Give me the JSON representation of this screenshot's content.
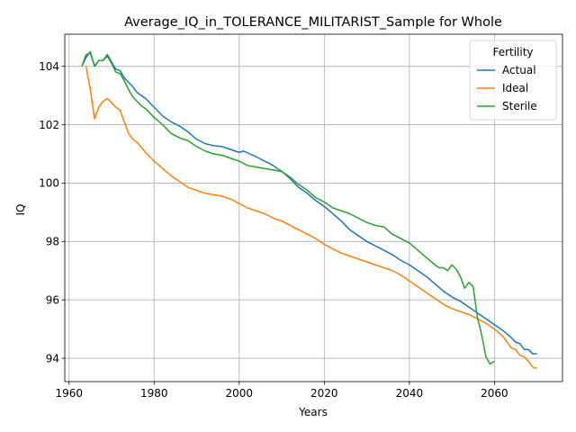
{
  "chart_data": {
    "type": "line",
    "title": "Average_IQ_in_TOLERANCE_MILITARIST_Sample for Whole",
    "xlabel": "Years",
    "ylabel": "IQ",
    "xlim": [
      1959,
      2076
    ],
    "ylim": [
      93.2,
      105.1
    ],
    "xticks": [
      1960,
      1980,
      2000,
      2020,
      2040,
      2060
    ],
    "yticks": [
      94,
      96,
      98,
      100,
      102,
      104
    ],
    "grid": true,
    "legend": {
      "title": "Fertility",
      "position": "top-right"
    },
    "series": [
      {
        "name": "Actual",
        "color": "#1f77b4",
        "points": [
          [
            1963,
            104.0
          ],
          [
            1964,
            104.3
          ],
          [
            1965,
            104.5
          ],
          [
            1966,
            104.0
          ],
          [
            1967,
            104.2
          ],
          [
            1968,
            104.2
          ],
          [
            1969,
            104.4
          ],
          [
            1970,
            104.15
          ],
          [
            1971,
            103.9
          ],
          [
            1972,
            103.85
          ],
          [
            1973,
            103.6
          ],
          [
            1974,
            103.45
          ],
          [
            1975,
            103.3
          ],
          [
            1976,
            103.1
          ],
          [
            1977,
            103.0
          ],
          [
            1978,
            102.9
          ],
          [
            1980,
            102.6
          ],
          [
            1982,
            102.3
          ],
          [
            1984,
            102.1
          ],
          [
            1986,
            101.95
          ],
          [
            1988,
            101.75
          ],
          [
            1990,
            101.5
          ],
          [
            1992,
            101.35
          ],
          [
            1994,
            101.28
          ],
          [
            1996,
            101.25
          ],
          [
            1998,
            101.15
          ],
          [
            2000,
            101.05
          ],
          [
            2001,
            101.1
          ],
          [
            2004,
            100.9
          ],
          [
            2006,
            100.75
          ],
          [
            2008,
            100.6
          ],
          [
            2010,
            100.4
          ],
          [
            2012,
            100.15
          ],
          [
            2014,
            99.85
          ],
          [
            2016,
            99.65
          ],
          [
            2018,
            99.4
          ],
          [
            2020,
            99.2
          ],
          [
            2022,
            98.95
          ],
          [
            2024,
            98.7
          ],
          [
            2026,
            98.4
          ],
          [
            2028,
            98.2
          ],
          [
            2030,
            98.0
          ],
          [
            2032,
            97.85
          ],
          [
            2034,
            97.7
          ],
          [
            2036,
            97.55
          ],
          [
            2038,
            97.35
          ],
          [
            2040,
            97.2
          ],
          [
            2042,
            97.0
          ],
          [
            2044,
            96.8
          ],
          [
            2046,
            96.55
          ],
          [
            2048,
            96.3
          ],
          [
            2050,
            96.1
          ],
          [
            2052,
            95.95
          ],
          [
            2054,
            95.75
          ],
          [
            2056,
            95.55
          ],
          [
            2058,
            95.35
          ],
          [
            2060,
            95.15
          ],
          [
            2062,
            94.95
          ],
          [
            2064,
            94.7
          ],
          [
            2065,
            94.55
          ],
          [
            2066,
            94.5
          ],
          [
            2067,
            94.3
          ],
          [
            2068,
            94.3
          ],
          [
            2069,
            94.15
          ],
          [
            2070,
            94.15
          ]
        ]
      },
      {
        "name": "Ideal",
        "color": "#ff7f0e",
        "points": [
          [
            1964,
            104.0
          ],
          [
            1965,
            103.2
          ],
          [
            1966,
            102.2
          ],
          [
            1967,
            102.6
          ],
          [
            1968,
            102.8
          ],
          [
            1969,
            102.9
          ],
          [
            1970,
            102.75
          ],
          [
            1971,
            102.6
          ],
          [
            1972,
            102.5
          ],
          [
            1973,
            102.1
          ],
          [
            1974,
            101.7
          ],
          [
            1975,
            101.5
          ],
          [
            1976,
            101.4
          ],
          [
            1978,
            101.05
          ],
          [
            1980,
            100.75
          ],
          [
            1982,
            100.5
          ],
          [
            1984,
            100.25
          ],
          [
            1986,
            100.05
          ],
          [
            1988,
            99.85
          ],
          [
            1990,
            99.75
          ],
          [
            1992,
            99.65
          ],
          [
            1994,
            99.6
          ],
          [
            1996,
            99.55
          ],
          [
            1998,
            99.45
          ],
          [
            2000,
            99.3
          ],
          [
            2002,
            99.15
          ],
          [
            2004,
            99.05
          ],
          [
            2006,
            98.95
          ],
          [
            2008,
            98.8
          ],
          [
            2010,
            98.7
          ],
          [
            2012,
            98.55
          ],
          [
            2014,
            98.4
          ],
          [
            2016,
            98.25
          ],
          [
            2018,
            98.1
          ],
          [
            2020,
            97.9
          ],
          [
            2022,
            97.75
          ],
          [
            2024,
            97.6
          ],
          [
            2026,
            97.5
          ],
          [
            2028,
            97.4
          ],
          [
            2030,
            97.3
          ],
          [
            2032,
            97.2
          ],
          [
            2034,
            97.1
          ],
          [
            2036,
            97.0
          ],
          [
            2038,
            96.85
          ],
          [
            2040,
            96.65
          ],
          [
            2042,
            96.45
          ],
          [
            2044,
            96.25
          ],
          [
            2046,
            96.05
          ],
          [
            2048,
            95.85
          ],
          [
            2050,
            95.7
          ],
          [
            2052,
            95.6
          ],
          [
            2054,
            95.5
          ],
          [
            2056,
            95.35
          ],
          [
            2058,
            95.2
          ],
          [
            2060,
            95.0
          ],
          [
            2062,
            94.75
          ],
          [
            2063,
            94.55
          ],
          [
            2064,
            94.35
          ],
          [
            2065,
            94.3
          ],
          [
            2066,
            94.1
          ],
          [
            2067,
            94.05
          ],
          [
            2068,
            93.9
          ],
          [
            2069,
            93.7
          ],
          [
            2070,
            93.65
          ]
        ]
      },
      {
        "name": "Sterile",
        "color": "#2ca02c",
        "points": [
          [
            1963,
            104.0
          ],
          [
            1964,
            104.4
          ],
          [
            1965,
            104.45
          ],
          [
            1966,
            104.0
          ],
          [
            1967,
            104.2
          ],
          [
            1968,
            104.2
          ],
          [
            1969,
            104.35
          ],
          [
            1970,
            104.1
          ],
          [
            1971,
            103.8
          ],
          [
            1972,
            103.75
          ],
          [
            1973,
            103.5
          ],
          [
            1974,
            103.2
          ],
          [
            1975,
            102.95
          ],
          [
            1976,
            102.8
          ],
          [
            1977,
            102.65
          ],
          [
            1978,
            102.55
          ],
          [
            1980,
            102.25
          ],
          [
            1982,
            102.0
          ],
          [
            1984,
            101.7
          ],
          [
            1986,
            101.55
          ],
          [
            1988,
            101.45
          ],
          [
            1990,
            101.25
          ],
          [
            1992,
            101.1
          ],
          [
            1994,
            101.0
          ],
          [
            1996,
            100.95
          ],
          [
            1998,
            100.85
          ],
          [
            2000,
            100.75
          ],
          [
            2002,
            100.6
          ],
          [
            2004,
            100.55
          ],
          [
            2006,
            100.5
          ],
          [
            2008,
            100.45
          ],
          [
            2010,
            100.4
          ],
          [
            2012,
            100.2
          ],
          [
            2014,
            99.95
          ],
          [
            2016,
            99.75
          ],
          [
            2018,
            99.5
          ],
          [
            2020,
            99.35
          ],
          [
            2022,
            99.15
          ],
          [
            2024,
            99.05
          ],
          [
            2026,
            98.95
          ],
          [
            2028,
            98.8
          ],
          [
            2030,
            98.65
          ],
          [
            2032,
            98.55
          ],
          [
            2034,
            98.5
          ],
          [
            2036,
            98.25
          ],
          [
            2038,
            98.1
          ],
          [
            2040,
            97.95
          ],
          [
            2042,
            97.7
          ],
          [
            2044,
            97.45
          ],
          [
            2046,
            97.2
          ],
          [
            2047,
            97.1
          ],
          [
            2048,
            97.1
          ],
          [
            2049,
            97.0
          ],
          [
            2050,
            97.2
          ],
          [
            2051,
            97.05
          ],
          [
            2052,
            96.8
          ],
          [
            2053,
            96.4
          ],
          [
            2054,
            96.6
          ],
          [
            2055,
            96.45
          ],
          [
            2056,
            95.4
          ],
          [
            2057,
            94.8
          ],
          [
            2058,
            94.05
          ],
          [
            2059,
            93.8
          ],
          [
            2060,
            93.9
          ]
        ]
      }
    ]
  }
}
